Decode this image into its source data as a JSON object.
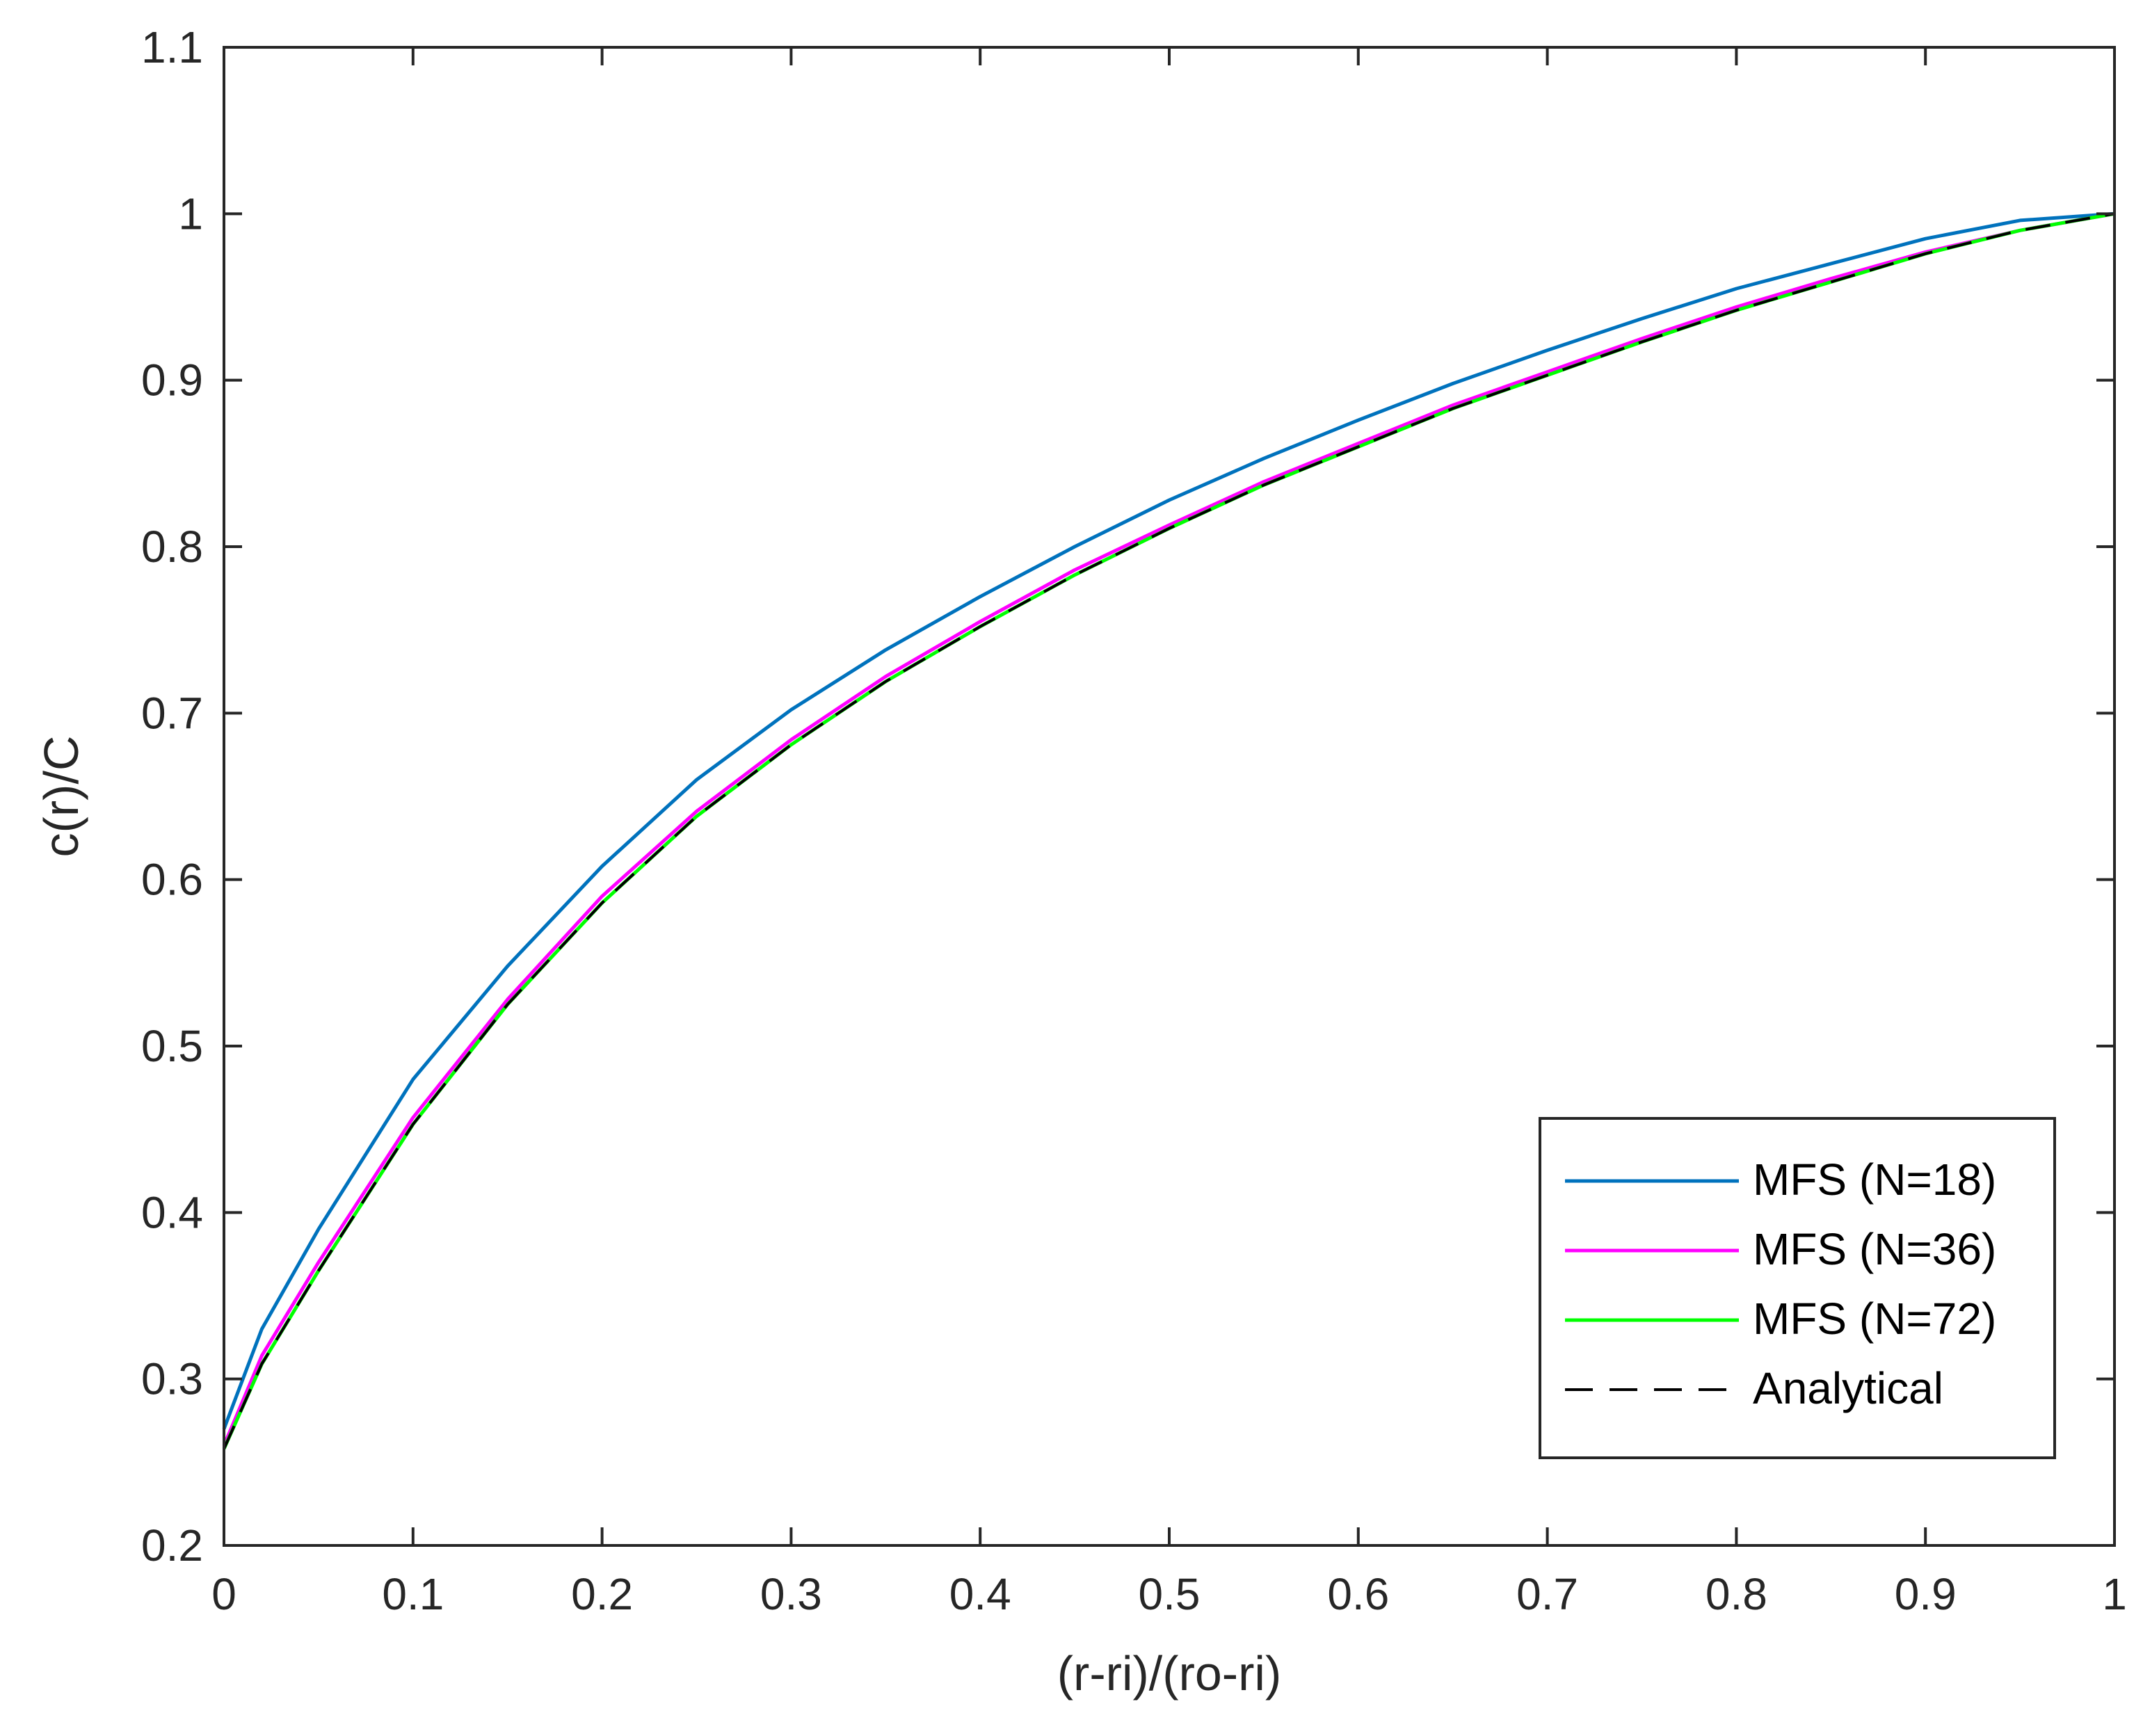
{
  "chart_data": {
    "type": "line",
    "title": "",
    "xlabel": "(r-ri)/(ro-ri)",
    "ylabel": "c(r)/C",
    "xlim": [
      0,
      1
    ],
    "ylim": [
      0.2,
      1.1
    ],
    "x_ticks": [
      0,
      0.1,
      0.2,
      0.3,
      0.4,
      0.5,
      0.6,
      0.7,
      0.8,
      0.9,
      1
    ],
    "x_tick_labels": [
      "0",
      "0.1",
      "0.2",
      "0.3",
      "0.4",
      "0.5",
      "0.6",
      "0.7",
      "0.8",
      "0.9",
      "1"
    ],
    "y_ticks": [
      0.2,
      0.3,
      0.4,
      0.5,
      0.6,
      0.7,
      0.8,
      0.9,
      1,
      1.1
    ],
    "y_tick_labels": [
      "0.2",
      "0.3",
      "0.4",
      "0.5",
      "0.6",
      "0.7",
      "0.8",
      "0.9",
      "1",
      "1.1"
    ],
    "grid": false,
    "legend_position": "bottom-right",
    "x": [
      0,
      0.02,
      0.05,
      0.1,
      0.15,
      0.2,
      0.25,
      0.3,
      0.35,
      0.4,
      0.45,
      0.5,
      0.55,
      0.6,
      0.65,
      0.7,
      0.75,
      0.8,
      0.85,
      0.9,
      0.95,
      1
    ],
    "series": [
      {
        "name": "MFS (N=18)",
        "color": "#0072bd",
        "dash": "solid",
        "values": [
          0.27,
          0.33,
          0.39,
          0.48,
          0.548,
          0.608,
          0.66,
          0.702,
          0.738,
          0.77,
          0.8,
          0.828,
          0.853,
          0.876,
          0.898,
          0.918,
          0.937,
          0.955,
          0.97,
          0.985,
          0.996,
          1.0
        ]
      },
      {
        "name": "MFS (N=36)",
        "color": "#ff00ff",
        "dash": "solid",
        "values": [
          0.26,
          0.314,
          0.37,
          0.457,
          0.528,
          0.59,
          0.641,
          0.684,
          0.722,
          0.755,
          0.786,
          0.813,
          0.839,
          0.862,
          0.885,
          0.905,
          0.925,
          0.944,
          0.961,
          0.977,
          0.99,
          1.0
        ]
      },
      {
        "name": "MFS (N=72)",
        "color": "#00ff00",
        "dash": "solid",
        "values": [
          0.258,
          0.309,
          0.365,
          0.453,
          0.525,
          0.586,
          0.638,
          0.681,
          0.719,
          0.752,
          0.783,
          0.811,
          0.837,
          0.86,
          0.883,
          0.903,
          0.923,
          0.942,
          0.959,
          0.976,
          0.99,
          1.0
        ]
      },
      {
        "name": "Analytical",
        "color": "#000000",
        "dash": "dashed",
        "values": [
          0.258,
          0.309,
          0.365,
          0.453,
          0.525,
          0.586,
          0.638,
          0.681,
          0.719,
          0.752,
          0.783,
          0.811,
          0.837,
          0.86,
          0.883,
          0.903,
          0.923,
          0.942,
          0.959,
          0.976,
          0.99,
          1.0
        ]
      }
    ]
  }
}
